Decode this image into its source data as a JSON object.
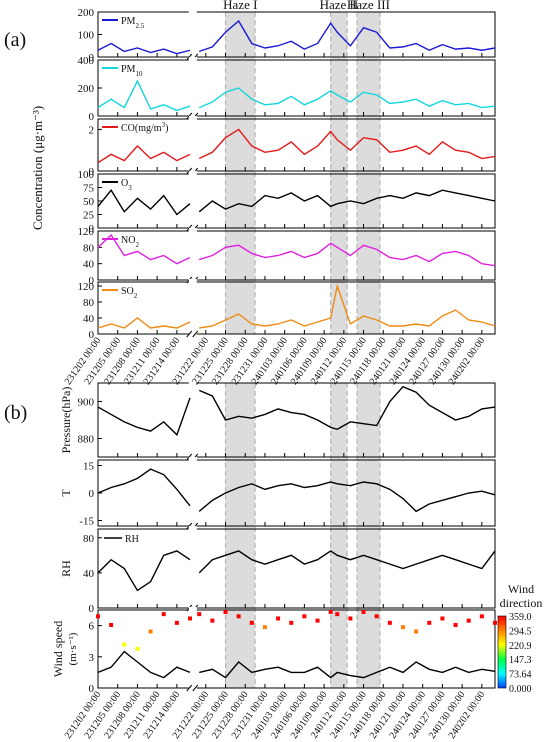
{
  "figure": {
    "panel_labels": [
      "(a)",
      "(b)"
    ],
    "haze_events": [
      {
        "label": "Haze I",
        "start": "231225 00:00",
        "end": "231229 12:00"
      },
      {
        "label": "Haze II",
        "start": "240110 00:00",
        "end": "240112 12:00"
      },
      {
        "label": "Haze III",
        "start": "240114 00:00",
        "end": "240117 12:00"
      }
    ],
    "a_ylabel": "Concentration (μg·m⁻³)",
    "b_wind_legend_title": [
      "Wind",
      "direction"
    ],
    "colorbar_ticks": [
      "359.0",
      "294.5",
      "220.9",
      "147.3",
      "73.64",
      "0.000"
    ],
    "colorbar_stops": [
      "#ff0000",
      "#ff8000",
      "#ffff00",
      "#00ff40",
      "#00ffff",
      "#0040ff"
    ],
    "xtick_labels": [
      "231202 00:00",
      "231205 00:00",
      "231208 00:00",
      "231211 00:00",
      "231214 00:00",
      "231222 00:00",
      "231225 00:00",
      "231228 00:00",
      "231231 00:00",
      "240103 00:00",
      "240106 00:00",
      "240109 00:00",
      "240112 00:00",
      "240115 00:00",
      "240118 00:00",
      "240121 00:00",
      "240124 00:00",
      "240127 00:00",
      "240130 00:00",
      "240202 00:00"
    ],
    "break_note": "axis break between 231216 and 231221"
  },
  "chart_data": [
    {
      "type": "line",
      "panel": "a",
      "series": [
        {
          "name": "PM2.5",
          "color": "#1a1ad4",
          "x": [
            "231202",
            "231204",
            "231206",
            "231208",
            "231210",
            "231212",
            "231214",
            "231216",
            "231221",
            "231223",
            "231225",
            "231227",
            "231229",
            "231231",
            "240102",
            "240104",
            "240106",
            "240108",
            "240110",
            "240111",
            "240113",
            "240115",
            "240117",
            "240119",
            "240121",
            "240123",
            "240125",
            "240127",
            "240129",
            "240131",
            "240202",
            "240204"
          ],
          "values": [
            30,
            60,
            25,
            40,
            20,
            35,
            15,
            30,
            25,
            45,
            110,
            160,
            60,
            40,
            50,
            70,
            35,
            60,
            150,
            110,
            50,
            130,
            110,
            40,
            45,
            60,
            30,
            55,
            35,
            40,
            30,
            40
          ]
        }
      ],
      "ylim": [
        0,
        200
      ],
      "yticks": [
        0,
        100,
        200
      ]
    },
    {
      "type": "line",
      "panel": "a",
      "series": [
        {
          "name": "PM10",
          "color": "#12d6dc",
          "x": [
            "231202",
            "231204",
            "231206",
            "231208",
            "231210",
            "231212",
            "231214",
            "231216",
            "231221",
            "231223",
            "231225",
            "231227",
            "231229",
            "231231",
            "240102",
            "240104",
            "240106",
            "240108",
            "240110",
            "240111",
            "240113",
            "240115",
            "240117",
            "240119",
            "240121",
            "240123",
            "240125",
            "240127",
            "240129",
            "240131",
            "240202",
            "240204"
          ],
          "values": [
            60,
            120,
            60,
            250,
            50,
            80,
            40,
            70,
            60,
            100,
            170,
            200,
            120,
            80,
            90,
            140,
            80,
            120,
            180,
            150,
            100,
            170,
            150,
            90,
            100,
            120,
            70,
            110,
            80,
            90,
            60,
            70
          ]
        }
      ],
      "ylim": [
        0,
        400
      ],
      "yticks": [
        0,
        200,
        400
      ]
    },
    {
      "type": "line",
      "panel": "a",
      "series": [
        {
          "name": "CO(mg/m³)",
          "color": "#e41a1a",
          "x": [
            "231202",
            "231204",
            "231206",
            "231208",
            "231210",
            "231212",
            "231214",
            "231216",
            "231221",
            "231223",
            "231225",
            "231227",
            "231229",
            "231231",
            "240102",
            "240104",
            "240106",
            "240108",
            "240110",
            "240111",
            "240113",
            "240115",
            "240117",
            "240119",
            "240121",
            "240123",
            "240125",
            "240127",
            "240129",
            "240131",
            "240202",
            "240204"
          ],
          "values": [
            0.4,
            0.8,
            0.5,
            1.2,
            0.6,
            0.9,
            0.5,
            0.8,
            0.6,
            0.9,
            1.6,
            2.0,
            1.2,
            0.9,
            1.0,
            1.4,
            0.8,
            1.2,
            1.9,
            1.5,
            1.0,
            1.6,
            1.5,
            0.9,
            1.0,
            1.2,
            0.8,
            1.4,
            1.0,
            0.9,
            0.6,
            0.7
          ]
        }
      ],
      "ylim": [
        0,
        2.5
      ],
      "yticks": [
        0,
        2
      ]
    },
    {
      "type": "line",
      "panel": "a",
      "series": [
        {
          "name": "O3",
          "color": "#000000",
          "x": [
            "231202",
            "231204",
            "231206",
            "231208",
            "231210",
            "231212",
            "231214",
            "231216",
            "231221",
            "231223",
            "231225",
            "231227",
            "231229",
            "231231",
            "240102",
            "240104",
            "240106",
            "240108",
            "240110",
            "240111",
            "240113",
            "240115",
            "240117",
            "240119",
            "240121",
            "240123",
            "240125",
            "240127",
            "240129",
            "240131",
            "240202",
            "240204"
          ],
          "values": [
            40,
            70,
            30,
            55,
            35,
            60,
            25,
            45,
            30,
            50,
            35,
            45,
            40,
            60,
            55,
            65,
            50,
            60,
            40,
            45,
            50,
            45,
            55,
            60,
            55,
            65,
            60,
            70,
            65,
            60,
            55,
            50
          ]
        }
      ],
      "ylim": [
        0,
        100
      ],
      "yticks": [
        0,
        25,
        50,
        75,
        100
      ]
    },
    {
      "type": "line",
      "panel": "a",
      "series": [
        {
          "name": "NO2",
          "color": "#e020e0",
          "x": [
            "231202",
            "231204",
            "231206",
            "231208",
            "231210",
            "231212",
            "231214",
            "231216",
            "231221",
            "231223",
            "231225",
            "231227",
            "231229",
            "231231",
            "240102",
            "240104",
            "240106",
            "240108",
            "240110",
            "240111",
            "240113",
            "240115",
            "240117",
            "240119",
            "240121",
            "240123",
            "240125",
            "240127",
            "240129",
            "240131",
            "240202",
            "240204"
          ],
          "values": [
            80,
            110,
            60,
            70,
            50,
            60,
            40,
            55,
            50,
            60,
            80,
            85,
            65,
            55,
            60,
            70,
            55,
            65,
            90,
            80,
            60,
            85,
            75,
            55,
            50,
            60,
            45,
            65,
            70,
            60,
            40,
            35
          ]
        }
      ],
      "ylim": [
        0,
        120
      ],
      "yticks": [
        0,
        40,
        80,
        120
      ]
    },
    {
      "type": "line",
      "panel": "a",
      "series": [
        {
          "name": "SO2",
          "color": "#f08a10",
          "x": [
            "231202",
            "231204",
            "231206",
            "231208",
            "231210",
            "231212",
            "231214",
            "231216",
            "231221",
            "231223",
            "231225",
            "231227",
            "231229",
            "231231",
            "240102",
            "240104",
            "240106",
            "240108",
            "240110",
            "240111",
            "240113",
            "240115",
            "240117",
            "240119",
            "240121",
            "240123",
            "240125",
            "240127",
            "240129",
            "240131",
            "240202",
            "240204"
          ],
          "values": [
            15,
            25,
            15,
            40,
            15,
            20,
            15,
            30,
            15,
            20,
            35,
            50,
            25,
            20,
            25,
            35,
            20,
            30,
            40,
            120,
            25,
            45,
            35,
            20,
            20,
            25,
            20,
            45,
            60,
            35,
            30,
            20
          ]
        }
      ],
      "ylim": [
        0,
        130
      ],
      "yticks": [
        0,
        40,
        80,
        120
      ]
    },
    {
      "type": "line",
      "panel": "b",
      "series": [
        {
          "name": "Pressure(hPa)",
          "color": "#000000",
          "x": [
            "231202",
            "231204",
            "231206",
            "231208",
            "231210",
            "231212",
            "231214",
            "231216",
            "231221",
            "231223",
            "231225",
            "231227",
            "231229",
            "231231",
            "240102",
            "240104",
            "240106",
            "240108",
            "240110",
            "240111",
            "240113",
            "240115",
            "240117",
            "240119",
            "240121",
            "240123",
            "240125",
            "240127",
            "240129",
            "240131",
            "240202",
            "240204"
          ],
          "values": [
            897,
            893,
            889,
            886,
            884,
            889,
            882,
            902,
            906,
            903,
            890,
            892,
            891,
            893,
            896,
            894,
            893,
            890,
            886,
            885,
            889,
            888,
            887,
            900,
            908,
            905,
            898,
            894,
            890,
            892,
            896,
            897
          ]
        }
      ],
      "ylim": [
        870,
        910
      ],
      "yticks": [
        880,
        900
      ]
    },
    {
      "type": "line",
      "panel": "b",
      "series": [
        {
          "name": "T",
          "color": "#000000",
          "x": [
            "231202",
            "231204",
            "231206",
            "231208",
            "231210",
            "231212",
            "231214",
            "231216",
            "231221",
            "231223",
            "231225",
            "231227",
            "231229",
            "231231",
            "240102",
            "240104",
            "240106",
            "240108",
            "240110",
            "240111",
            "240113",
            "240115",
            "240117",
            "240119",
            "240121",
            "240123",
            "240125",
            "240127",
            "240129",
            "240131",
            "240202",
            "240204"
          ],
          "values": [
            0,
            3,
            5,
            8,
            13,
            10,
            2,
            -7,
            -10,
            -4,
            0,
            3,
            5,
            2,
            4,
            5,
            3,
            4,
            6,
            5,
            4,
            6,
            5,
            2,
            -3,
            -10,
            -6,
            -4,
            -2,
            0,
            1,
            -1
          ]
        }
      ],
      "ylim": [
        -18,
        18
      ],
      "yticks": [
        -15,
        0,
        15
      ]
    },
    {
      "type": "line",
      "panel": "b",
      "series": [
        {
          "name": "RH",
          "color": "#000000",
          "x": [
            "231202",
            "231204",
            "231206",
            "231208",
            "231210",
            "231212",
            "231214",
            "231216",
            "231221",
            "231223",
            "231225",
            "231227",
            "231229",
            "231231",
            "240102",
            "240104",
            "240106",
            "240108",
            "240110",
            "240111",
            "240113",
            "240115",
            "240117",
            "240119",
            "240121",
            "240123",
            "240125",
            "240127",
            "240129",
            "240131",
            "240202",
            "240204"
          ],
          "values": [
            40,
            55,
            45,
            20,
            30,
            60,
            65,
            55,
            40,
            55,
            60,
            65,
            55,
            50,
            55,
            60,
            50,
            55,
            65,
            60,
            55,
            60,
            55,
            50,
            45,
            50,
            55,
            60,
            55,
            50,
            45,
            65
          ]
        }
      ],
      "ylim": [
        0,
        90
      ],
      "yticks": [
        0,
        40,
        80
      ]
    },
    {
      "type": "scatter",
      "panel": "b",
      "series": [
        {
          "name": "Wind speed",
          "color": "#000000",
          "x": [
            "231202",
            "231204",
            "231206",
            "231208",
            "231210",
            "231212",
            "231214",
            "231216",
            "231221",
            "231223",
            "231225",
            "231227",
            "231229",
            "231231",
            "240102",
            "240104",
            "240106",
            "240108",
            "240110",
            "240111",
            "240113",
            "240115",
            "240117",
            "240119",
            "240121",
            "240123",
            "240125",
            "240127",
            "240129",
            "240131",
            "240202",
            "240204"
          ],
          "values": [
            1.5,
            2.0,
            3.5,
            2.5,
            1.5,
            1.0,
            2.0,
            1.5,
            1.5,
            1.8,
            1.0,
            2.5,
            1.5,
            1.8,
            2.0,
            1.5,
            1.5,
            2.0,
            1.0,
            1.5,
            1.2,
            1.0,
            1.5,
            2.0,
            1.5,
            2.5,
            1.8,
            1.5,
            2.0,
            1.5,
            1.8,
            1.6
          ]
        },
        {
          "name": "Wind direction",
          "color": "colormap",
          "x": [
            "231202",
            "231204",
            "231206",
            "231208",
            "231210",
            "231212",
            "231214",
            "231216",
            "231221",
            "231223",
            "231225",
            "231227",
            "231229",
            "231231",
            "240102",
            "240104",
            "240106",
            "240108",
            "240110",
            "240111",
            "240113",
            "240115",
            "240117",
            "240119",
            "240121",
            "240123",
            "240125",
            "240127",
            "240129",
            "240131",
            "240202",
            "240204"
          ],
          "values": [
            330,
            290,
            200,
            180,
            260,
            340,
            300,
            320,
            340,
            310,
            350,
            330,
            300,
            280,
            320,
            300,
            330,
            310,
            350,
            340,
            320,
            350,
            330,
            300,
            280,
            260,
            300,
            320,
            290,
            310,
            330,
            300
          ]
        }
      ],
      "ylim": [
        0,
        7.5
      ],
      "yticks": [
        0,
        3,
        6
      ]
    }
  ]
}
